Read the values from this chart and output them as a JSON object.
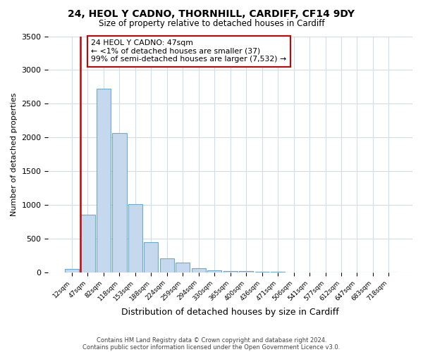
{
  "title1": "24, HEOL Y CADNO, THORNHILL, CARDIFF, CF14 9DY",
  "title2": "Size of property relative to detached houses in Cardiff",
  "xlabel": "Distribution of detached houses by size in Cardiff",
  "ylabel": "Number of detached properties",
  "bar_labels": [
    "12sqm",
    "47sqm",
    "82sqm",
    "118sqm",
    "153sqm",
    "188sqm",
    "224sqm",
    "259sqm",
    "294sqm",
    "330sqm",
    "365sqm",
    "400sqm",
    "436sqm",
    "471sqm",
    "506sqm",
    "541sqm",
    "577sqm",
    "612sqm",
    "647sqm",
    "683sqm",
    "718sqm"
  ],
  "bar_values": [
    50,
    850,
    2720,
    2070,
    1010,
    450,
    210,
    145,
    60,
    30,
    20,
    15,
    10,
    5,
    0,
    0,
    0,
    0,
    0,
    0,
    0
  ],
  "bar_color": "#c5d8ed",
  "bar_edge_color": "#6aaad4",
  "highlight_bar_index": 1,
  "highlight_bar_color": "#cc0000",
  "ylim": [
    0,
    3500
  ],
  "yticks": [
    0,
    500,
    1000,
    1500,
    2000,
    2500,
    3000,
    3500
  ],
  "annotation_text": "24 HEOL Y CADNO: 47sqm\n← <1% of detached houses are smaller (37)\n99% of semi-detached houses are larger (7,532) →",
  "annotation_box_color": "#ffffff",
  "annotation_box_edge_color": "#cc0000",
  "footer_line1": "Contains HM Land Registry data © Crown copyright and database right 2024.",
  "footer_line2": "Contains public sector information licensed under the Open Government Licence v3.0.",
  "background_color": "#ffffff",
  "plot_background_color": "#ffffff",
  "grid_color": "#d0dce8"
}
